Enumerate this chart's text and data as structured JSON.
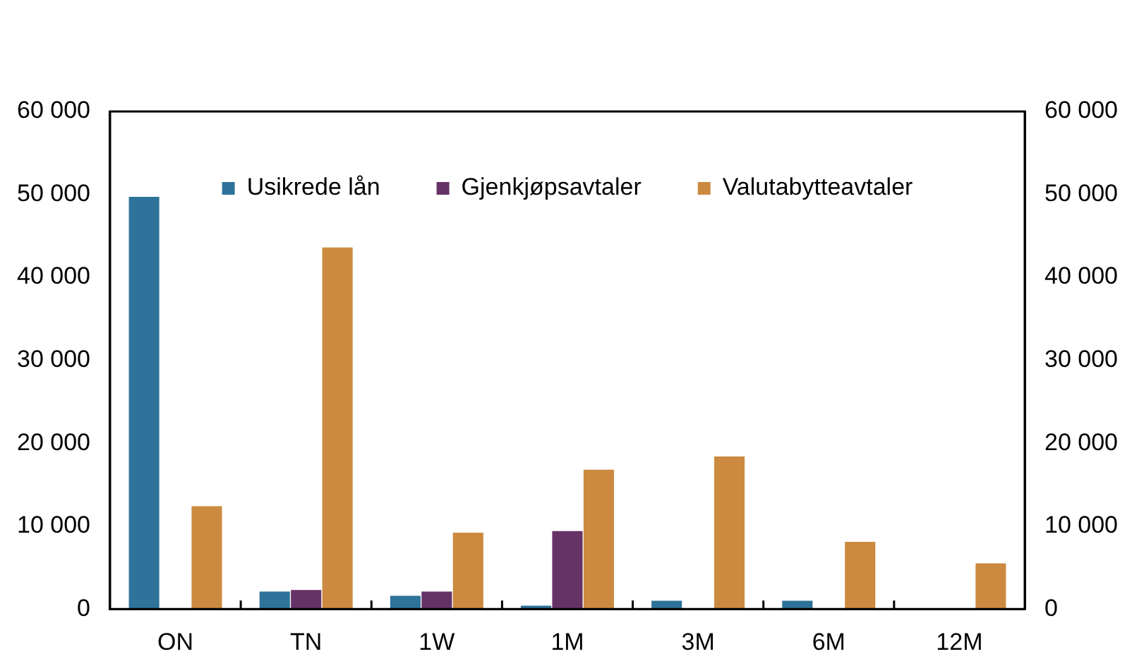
{
  "chart_data": {
    "type": "bar",
    "categories": [
      "ON",
      "TN",
      "1W",
      "1M",
      "3M",
      "6M",
      "12M"
    ],
    "series": [
      {
        "name": "Usikrede lån",
        "color": "#2e7399",
        "values": [
          49700,
          2100,
          1600,
          400,
          1000,
          1000,
          0
        ]
      },
      {
        "name": "Gjenkjøpsavtaler",
        "color": "#663366",
        "values": [
          0,
          2300,
          2100,
          9400,
          0,
          0,
          0
        ]
      },
      {
        "name": "Valutabytteavtaler",
        "color": "#cc8a40",
        "values": [
          12400,
          43600,
          9200,
          16800,
          18400,
          8100,
          5500
        ]
      }
    ],
    "ylim": [
      0,
      60000
    ],
    "yticks": [
      {
        "value": 0,
        "label": "0"
      },
      {
        "value": 10000,
        "label": "10 000"
      },
      {
        "value": 20000,
        "label": "20 000"
      },
      {
        "value": 30000,
        "label": "30 000"
      },
      {
        "value": 40000,
        "label": "40 000"
      },
      {
        "value": 50000,
        "label": "50 000"
      },
      {
        "value": 60000,
        "label": "60 000"
      }
    ],
    "y2lim": [
      0,
      60000
    ],
    "y2ticks": [
      {
        "value": 0,
        "label": "0"
      },
      {
        "value": 10000,
        "label": "10 000"
      },
      {
        "value": 20000,
        "label": "20 000"
      },
      {
        "value": 30000,
        "label": "30 000"
      },
      {
        "value": 40000,
        "label": "40 000"
      },
      {
        "value": 50000,
        "label": "50 000"
      },
      {
        "value": 60000,
        "label": "60 000"
      }
    ],
    "grid": false,
    "legend": "top"
  }
}
